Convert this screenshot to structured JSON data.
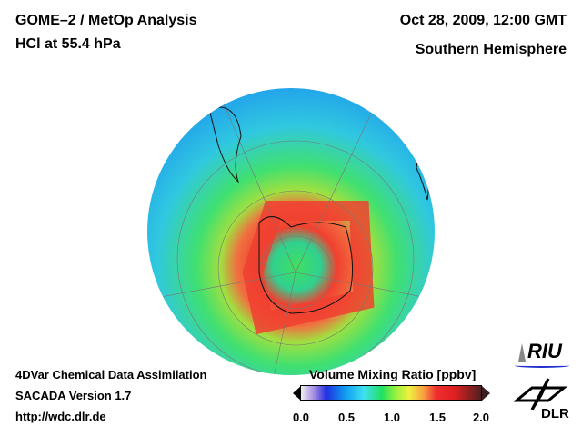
{
  "header": {
    "title_left_1": "GOME–2 / MetOp Analysis",
    "title_left_2": "HCl at 55.4 hPa",
    "title_right_1": "Oct 28, 2009, 12:00 GMT",
    "title_right_2": "Southern Hemisphere"
  },
  "footer": {
    "line1": "4DVar Chemical Data Assimilation",
    "line2": "SACADA Version 1.7",
    "line3": "http://wdc.dlr.de"
  },
  "colorbar": {
    "title": "Volume Mixing Ratio [ppbv]",
    "ticks": [
      "0.0",
      "0.5",
      "1.0",
      "1.5",
      "2.0"
    ],
    "min": 0.0,
    "max": 2.0
  },
  "logos": {
    "riu": "RIU",
    "dlr": "DLR"
  },
  "colors": {
    "low": "#2030e0",
    "mid": "#20e060",
    "high": "#e02020"
  }
}
